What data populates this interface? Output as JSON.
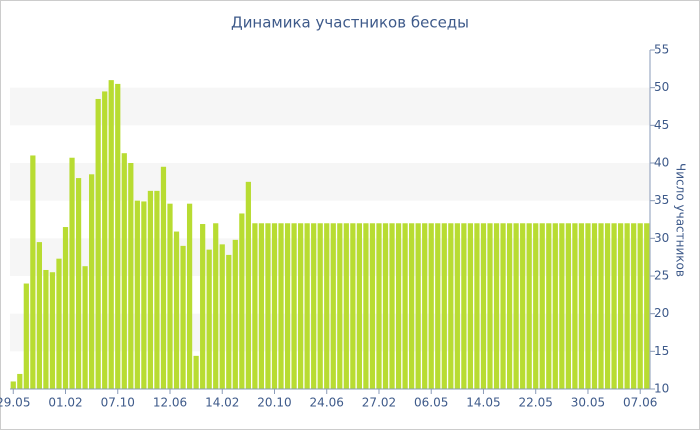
{
  "chart_data": {
    "type": "bar",
    "title": "Динамика участников беседы",
    "y_label": "Число участников",
    "categories": [
      "29.05",
      null,
      null,
      null,
      null,
      null,
      null,
      null,
      "01.02",
      null,
      null,
      null,
      null,
      null,
      null,
      null,
      "07.10",
      null,
      null,
      null,
      null,
      null,
      null,
      null,
      "12.06",
      null,
      null,
      null,
      null,
      null,
      null,
      null,
      "14.02",
      null,
      null,
      null,
      null,
      null,
      null,
      null,
      "20.10",
      null,
      null,
      null,
      null,
      null,
      null,
      null,
      "24.06",
      null,
      null,
      null,
      null,
      null,
      null,
      null,
      "27.02",
      null,
      null,
      null,
      null,
      null,
      null,
      null,
      "06.05",
      null,
      null,
      null,
      null,
      null,
      null,
      null,
      "14.05",
      null,
      null,
      null,
      null,
      null,
      null,
      null,
      "22.05",
      null,
      null,
      null,
      null,
      null,
      null,
      null,
      "30.05",
      null,
      null,
      null,
      null,
      null,
      null,
      null,
      "07.06",
      null
    ],
    "values": [
      11,
      12,
      24,
      41,
      29.5,
      25.8,
      25.5,
      27.3,
      31.5,
      40.7,
      38,
      26.3,
      38.5,
      48.5,
      49.5,
      51,
      50.5,
      41.3,
      40,
      35,
      34.9,
      36.3,
      36.3,
      39.5,
      34.6,
      30.9,
      29,
      34.6,
      14.4,
      31.9,
      28.5,
      32,
      29.2,
      27.8,
      29.8,
      33.3,
      37.5,
      32,
      32,
      32,
      32,
      32,
      32,
      32,
      32,
      32,
      32,
      32,
      32,
      32,
      32,
      32,
      32,
      32,
      32,
      32,
      32,
      32,
      32,
      32,
      32,
      32,
      32,
      32,
      32,
      32,
      32,
      32,
      32,
      32,
      32,
      32,
      32,
      32,
      32,
      32,
      32,
      32,
      32,
      32,
      32,
      32,
      32,
      32,
      32,
      32,
      32,
      32,
      32,
      32,
      32,
      32,
      32,
      32,
      32,
      32,
      32,
      32
    ],
    "color": "#b8dc32",
    "ylim": [
      10,
      55
    ],
    "yticks": [
      10,
      15,
      20,
      25,
      30,
      35,
      40,
      45,
      50,
      55
    ],
    "grid": true
  }
}
